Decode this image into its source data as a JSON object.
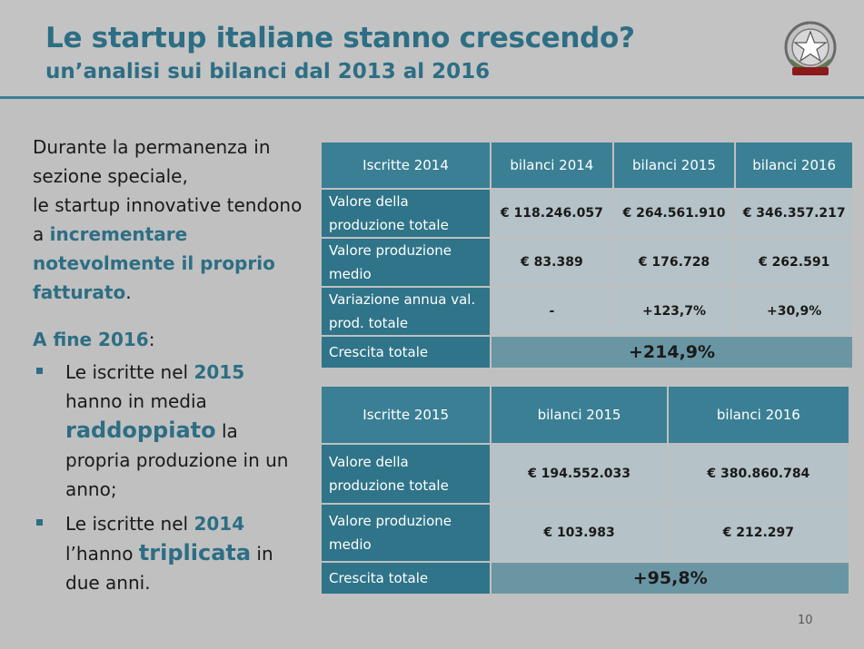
{
  "header": {
    "title": "Le startup italiane stanno crescendo?",
    "subtitle": "un’analisi sui bilanci dal 2013 al 2016"
  },
  "emblem": {
    "icon": "repubblica-italiana-emblem-icon"
  },
  "left": {
    "p1_a": "Durante la permanenza in sezione speciale,",
    "p1_b": "le startup innovative tendono a ",
    "p1_accent": "incrementare notevolmente il proprio fatturato",
    "p1_end": ".",
    "sub_heading": "A fine 2016",
    "sub_colon": ":",
    "bullet1": {
      "a": "Le iscritte nel ",
      "year": "2015",
      "b": " hanno in media ",
      "accent": "raddoppiato",
      "c": " la propria produzione in un anno;"
    },
    "bullet2": {
      "a": "Le iscritte nel ",
      "year": "2014",
      "b": " l’hanno ",
      "accent": "triplicata",
      "c": " in due anni."
    }
  },
  "table1": {
    "headers": [
      "Iscritte 2014",
      "bilanci 2014",
      "bilanci 2015",
      "bilanci 2016"
    ],
    "rows": [
      {
        "label": "Valore della produzione totale",
        "values": [
          "€ 118.246.057",
          "€ 264.561.910",
          "€ 346.357.217"
        ]
      },
      {
        "label": "Valore produzione medio",
        "values": [
          "€ 83.389",
          "€ 176.728",
          "€ 262.591"
        ]
      },
      {
        "label": "Variazione annua val. prod. totale",
        "values": [
          "-",
          "+123,7%",
          "+30,9%"
        ]
      }
    ],
    "total_label": "Crescita totale",
    "total_value": "+214,9%"
  },
  "table2": {
    "headers": [
      "Iscritte 2015",
      "bilanci 2015",
      "bilanci 2016"
    ],
    "rows": [
      {
        "label": "Valore della produzione totale",
        "values": [
          "€ 194.552.033",
          "€ 380.860.784"
        ]
      },
      {
        "label": "Valore produzione medio",
        "values": [
          "€ 103.983",
          "€ 212.297"
        ]
      }
    ],
    "total_label": "Crescita totale",
    "total_value": "+95,8%"
  },
  "page_number": "10"
}
